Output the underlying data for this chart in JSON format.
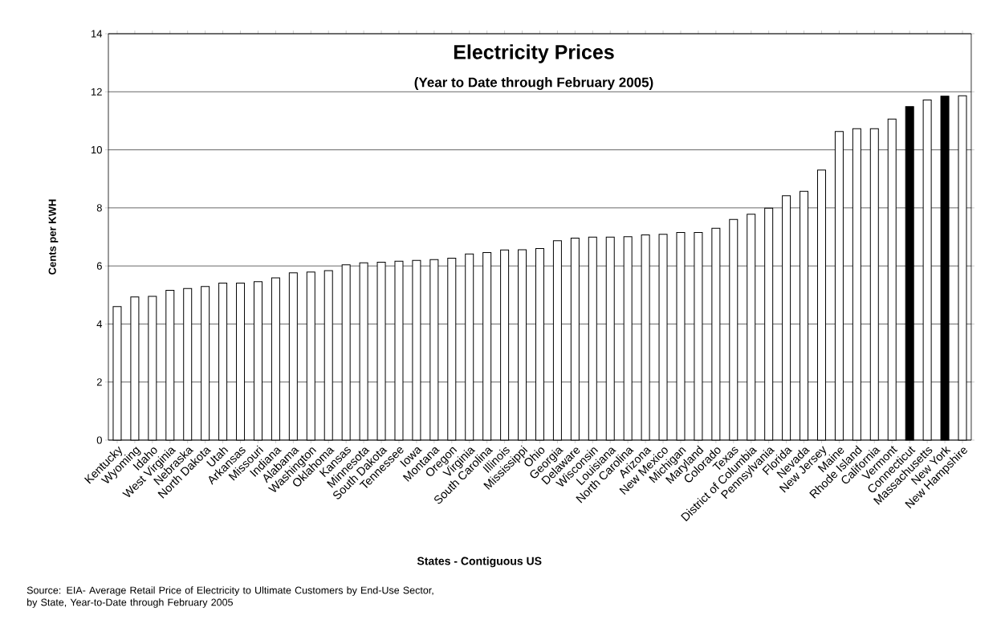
{
  "chart_data": {
    "type": "bar",
    "title": "Electricity Prices",
    "subtitle": "(Year to Date through February 2005)",
    "xlabel": "States - Contiguous US",
    "ylabel": "Cents per KWH",
    "categories": [
      "Kentucky",
      "Wyoming",
      "Idaho",
      "West Virginia",
      "Nebraska",
      "North Dakota",
      "Utah",
      "Arkansas",
      "Missouri",
      "Indiana",
      "Alabama",
      "Washington",
      "Oklahoma",
      "Kansas",
      "Minnesota",
      "South Dakota",
      "Tennessee",
      "Iowa",
      "Montana",
      "Oregon",
      "Virginia",
      "South Carolina",
      "Illinois",
      "Mississippi",
      "Ohio",
      "Georgia",
      "Delaware",
      "Wisconsin",
      "Louisiana",
      "North Carolina",
      "Arizona",
      "New Mexico",
      "Michigan",
      "Maryland",
      "Colorado",
      "Texas",
      "District of Columbia",
      "Pennsylvania",
      "Florida",
      "Nevada",
      "New Jersey",
      "Maine",
      "Rhode Island",
      "California",
      "Vermont",
      "Connecticut",
      "Massachusetts",
      "New York",
      "New Hampshire"
    ],
    "values": [
      4.6,
      4.93,
      4.95,
      5.16,
      5.22,
      5.29,
      5.41,
      5.41,
      5.46,
      5.59,
      5.76,
      5.79,
      5.84,
      6.04,
      6.11,
      6.13,
      6.16,
      6.19,
      6.22,
      6.27,
      6.41,
      6.46,
      6.55,
      6.56,
      6.6,
      6.87,
      6.96,
      6.99,
      6.99,
      7.01,
      7.07,
      7.09,
      7.15,
      7.15,
      7.3,
      7.6,
      7.78,
      7.99,
      8.42,
      8.57,
      9.3,
      10.63,
      10.73,
      10.73,
      11.06,
      11.49,
      11.72,
      11.85,
      11.86
    ],
    "colors": [
      "#ffffff",
      "#ffffff",
      "#ffffff",
      "#ffffff",
      "#ffffff",
      "#ffffff",
      "#ffffff",
      "#ffffff",
      "#ffffff",
      "#ffffff",
      "#ffffff",
      "#ffffff",
      "#ffffff",
      "#ffffff",
      "#ffffff",
      "#ffffff",
      "#ffffff",
      "#ffffff",
      "#ffffff",
      "#ffffff",
      "#ffffff",
      "#ffffff",
      "#ffffff",
      "#ffffff",
      "#ffffff",
      "#ffffff",
      "#ffffff",
      "#ffffff",
      "#ffffff",
      "#ffffff",
      "#ffffff",
      "#ffffff",
      "#ffffff",
      "#ffffff",
      "#ffffff",
      "#ffffff",
      "#ffffff",
      "#ffffff",
      "#ffffff",
      "#ffffff",
      "#ffffff",
      "#ffffff",
      "#ffffff",
      "#ffffff",
      "#ffffff",
      "#000000",
      "#ffffff",
      "#000000",
      "#ffffff"
    ],
    "ylim": [
      0,
      14
    ],
    "yticks": [
      0,
      2,
      4,
      6,
      8,
      10,
      12,
      14
    ],
    "grid": "y",
    "annotations": [
      "Source: EIA- Average Retail Price of Electricity to Ultimate Customers by End-Use Sector, by State, Year-to-Date through February 2005"
    ]
  }
}
